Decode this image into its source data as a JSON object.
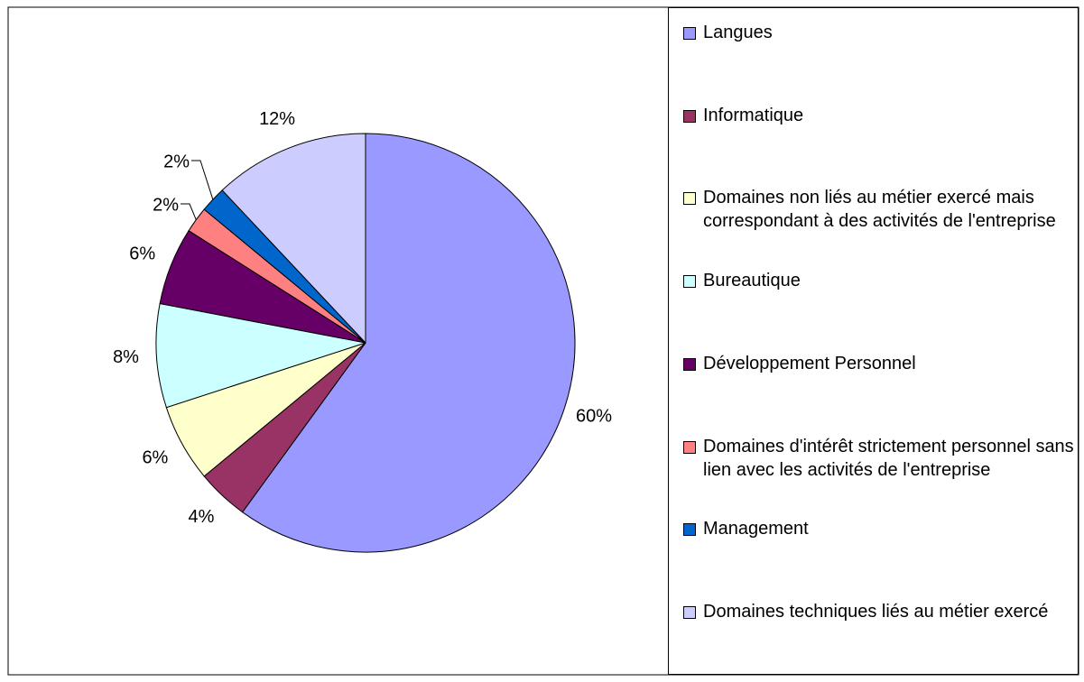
{
  "chart_data": {
    "type": "pie",
    "categories": [
      "Langues",
      "Informatique",
      "Domaines non liés au métier exercé mais correspondant à des activités de l'entreprise",
      "Bureautique",
      "Développement Personnel",
      "Domaines d'intérêt strictement personnel sans lien avec les activités de l'entreprise",
      "Management",
      "Domaines techniques liés au métier exercé"
    ],
    "values": [
      60,
      4,
      6,
      8,
      6,
      2,
      2,
      12
    ],
    "value_labels": [
      "60%",
      "4%",
      "6%",
      "8%",
      "6%",
      "2%",
      "2%",
      "12%"
    ],
    "colors": [
      "#9999ff",
      "#993366",
      "#ffffcc",
      "#ccffff",
      "#660066",
      "#ff8080",
      "#0066cc",
      "#ccccff"
    ],
    "legend": "right"
  }
}
